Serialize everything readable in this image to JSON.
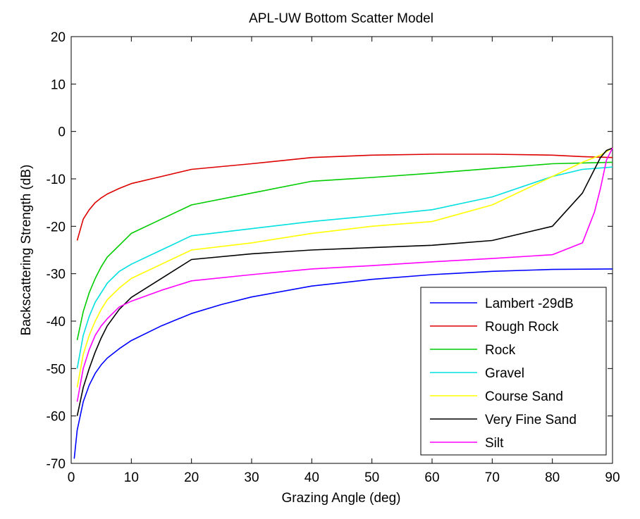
{
  "chart_data": {
    "type": "line",
    "title": "APL-UW Bottom Scatter Model",
    "xlabel": "Grazing Angle (deg)",
    "ylabel": "Backscattering Strength (dB)",
    "xlim": [
      0,
      90
    ],
    "ylim": [
      -70,
      20
    ],
    "xticks": [
      0,
      10,
      20,
      30,
      40,
      50,
      60,
      70,
      80,
      90
    ],
    "yticks": [
      20,
      10,
      0,
      -10,
      -20,
      -30,
      -40,
      -50,
      -60,
      -70
    ],
    "grid": false,
    "legend_position": "bottom-right",
    "series": [
      {
        "name": "Lambert -29dB",
        "color": "#0000ff",
        "x": [
          0.5,
          1,
          2,
          3,
          4,
          5,
          6,
          8,
          10,
          15,
          20,
          25,
          30,
          40,
          50,
          60,
          70,
          80,
          90
        ],
        "y": [
          -69,
          -63,
          -57,
          -53.5,
          -51,
          -49.2,
          -47.8,
          -45.8,
          -44.1,
          -41,
          -38.4,
          -36.5,
          -34.9,
          -32.6,
          -31.2,
          -30.2,
          -29.5,
          -29.1,
          -29
        ]
      },
      {
        "name": "Rough Rock",
        "color": "#dd0000",
        "x": [
          1,
          2,
          3,
          4,
          5,
          6,
          8,
          10,
          15,
          20,
          30,
          40,
          50,
          60,
          70,
          80,
          85,
          90
        ],
        "y": [
          -23,
          -18.5,
          -16.5,
          -15,
          -14,
          -13.2,
          -12,
          -11,
          -9.5,
          -8,
          -6.8,
          -5.5,
          -5,
          -4.8,
          -4.8,
          -5,
          -5.3,
          -5.5
        ]
      },
      {
        "name": "Rock",
        "color": "#00cc00",
        "x": [
          1,
          2,
          3,
          4,
          5,
          6,
          8,
          10,
          15,
          20,
          30,
          40,
          50,
          60,
          70,
          80,
          90
        ],
        "y": [
          -44,
          -38,
          -34,
          -31,
          -28.5,
          -26.5,
          -24,
          -21.5,
          -18.5,
          -15.5,
          -13,
          -10.5,
          -9.7,
          -8.8,
          -7.8,
          -6.8,
          -6.5
        ]
      },
      {
        "name": "Gravel",
        "color": "#00e0e0",
        "x": [
          1,
          2,
          3,
          4,
          5,
          6,
          8,
          10,
          15,
          20,
          30,
          40,
          50,
          60,
          70,
          80,
          85,
          90
        ],
        "y": [
          -50,
          -43,
          -39,
          -36,
          -34,
          -32,
          -29.5,
          -28,
          -25,
          -22,
          -20.5,
          -19,
          -17.8,
          -16.5,
          -13.8,
          -9.5,
          -8,
          -7.5
        ]
      },
      {
        "name": "Course Sand",
        "color": "#ffff00",
        "x": [
          1,
          2,
          3,
          4,
          5,
          6,
          8,
          10,
          15,
          20,
          30,
          40,
          50,
          60,
          70,
          80,
          85,
          88,
          90
        ],
        "y": [
          -54,
          -47,
          -43,
          -40,
          -37.5,
          -35.5,
          -33,
          -31,
          -28,
          -25,
          -23.5,
          -21.5,
          -20,
          -19,
          -15.5,
          -9.5,
          -6.5,
          -5,
          -3.5
        ]
      },
      {
        "name": "Very Fine Sand",
        "color": "#000000",
        "x": [
          1,
          2,
          3,
          4,
          5,
          6,
          8,
          10,
          15,
          20,
          30,
          40,
          50,
          60,
          70,
          80,
          85,
          88,
          89,
          90
        ],
        "y": [
          -60,
          -54,
          -50,
          -46.5,
          -43.5,
          -41,
          -37.5,
          -35,
          -31,
          -27,
          -25.8,
          -25,
          -24.5,
          -24,
          -23,
          -20,
          -13,
          -5.5,
          -4,
          -3.5
        ]
      },
      {
        "name": "Silt",
        "color": "#ff00ff",
        "x": [
          1,
          2,
          3,
          4,
          5,
          6,
          8,
          10,
          15,
          20,
          30,
          40,
          50,
          60,
          70,
          80,
          85,
          87,
          88,
          89,
          90
        ],
        "y": [
          -57,
          -50,
          -46,
          -43,
          -41,
          -39.5,
          -37,
          -35.8,
          -33.5,
          -31.5,
          -30.2,
          -29,
          -28.3,
          -27.5,
          -26.8,
          -26,
          -23.5,
          -17,
          -12,
          -6,
          -3.5
        ]
      }
    ]
  }
}
